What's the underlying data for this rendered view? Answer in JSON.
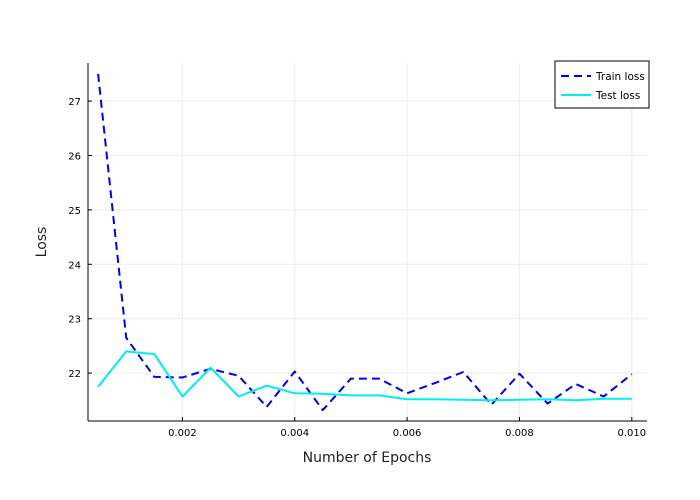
{
  "chart_data": {
    "type": "line",
    "title": "",
    "xlabel": "Number of Epochs",
    "ylabel": "Loss",
    "xlim": [
      0.00032,
      0.01027
    ],
    "ylim": [
      21.12,
      27.7
    ],
    "xticks": [
      0.002,
      0.004,
      0.006,
      0.008,
      0.01
    ],
    "xtick_labels": [
      "0.002",
      "0.004",
      "0.006",
      "0.008",
      "0.010"
    ],
    "yticks": [
      22,
      23,
      24,
      25,
      26,
      27
    ],
    "ytick_labels": [
      "22",
      "23",
      "24",
      "25",
      "26",
      "27"
    ],
    "grid": true,
    "legend_position": "top-right",
    "x": [
      0.0005,
      0.001,
      0.0015,
      0.002,
      0.0025,
      0.003,
      0.0035,
      0.004,
      0.0045,
      0.005,
      0.0055,
      0.006,
      0.0065,
      0.007,
      0.0075,
      0.008,
      0.0085,
      0.009,
      0.0095,
      0.01
    ],
    "series": [
      {
        "name": "Train loss",
        "style": "dashed",
        "color": "#0000ee",
        "values": [
          27.5,
          22.65,
          21.93,
          21.92,
          22.08,
          21.95,
          21.38,
          22.03,
          21.32,
          21.9,
          21.9,
          21.63,
          21.82,
          22.02,
          21.42,
          21.99,
          21.44,
          21.8,
          21.57,
          21.98
        ]
      },
      {
        "name": "Test loss",
        "style": "solid",
        "color": "#00eeee",
        "values": [
          21.75,
          22.4,
          22.35,
          21.57,
          22.1,
          21.57,
          21.77,
          21.63,
          21.62,
          21.59,
          21.59,
          21.52,
          21.52,
          21.51,
          21.5,
          21.51,
          21.52,
          21.5,
          21.53,
          21.53
        ]
      }
    ]
  }
}
